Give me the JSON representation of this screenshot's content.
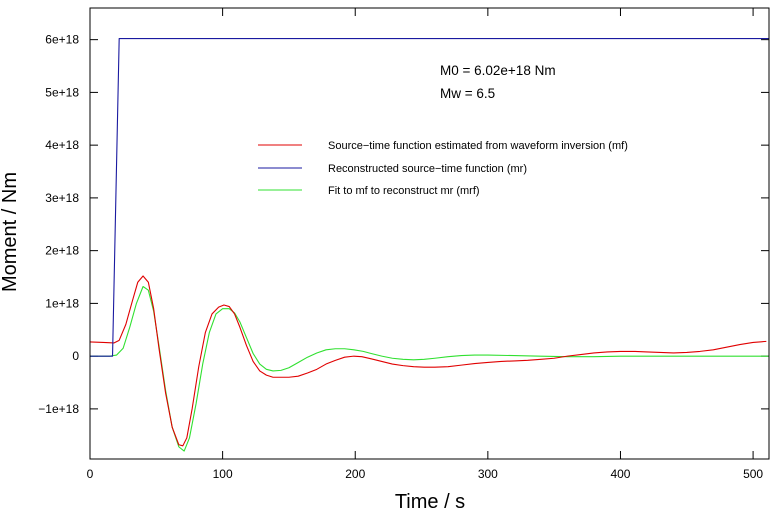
{
  "chart_data": {
    "type": "line",
    "xlabel": "Time / s",
    "ylabel": "Moment / Nm",
    "xlim": [
      0,
      512
    ],
    "ylim": [
      -1.95e+18,
      6.6e+18
    ],
    "x_ticks": [
      0,
      100,
      200,
      300,
      400,
      500
    ],
    "y_ticks": [
      -1e+18,
      0,
      1e+18,
      2e+18,
      3e+18,
      4e+18,
      5e+18,
      6e+18
    ],
    "x_tick_labels": [
      "0",
      "100",
      "200",
      "300",
      "400",
      "500"
    ],
    "y_tick_labels": [
      "−1e+18",
      "0",
      "1e+18",
      "2e+18",
      "3e+18",
      "4e+18",
      "5e+18",
      "6e+18"
    ],
    "grid": false,
    "legend_placement": "upper-right",
    "annotations": [
      {
        "text": "M0 = 6.02e+18 Nm"
      },
      {
        "text": "Mw = 6.5"
      }
    ],
    "series": [
      {
        "name": "Source−time function estimated from waveform inversion (mf)",
        "color": "#e00000",
        "x": [
          0,
          10,
          18,
          22,
          27,
          32,
          36,
          40,
          44,
          48,
          52,
          57,
          62,
          67,
          70,
          73,
          77,
          82,
          87,
          92,
          97,
          101,
          105,
          109,
          113,
          118,
          123,
          128,
          133,
          138,
          144,
          150,
          157,
          164,
          171,
          178,
          185,
          192,
          199,
          205,
          212,
          220,
          228,
          236,
          244,
          252,
          260,
          270,
          280,
          290,
          300,
          310,
          320,
          330,
          340,
          350,
          360,
          370,
          380,
          390,
          400,
          410,
          420,
          430,
          440,
          450,
          460,
          470,
          480,
          490,
          500,
          510
        ],
        "values": [
          2.7e+17,
          2.6e+17,
          2.5e+17,
          3e+17,
          6e+17,
          1.05e+18,
          1.4e+18,
          1.52e+18,
          1.4e+18,
          9e+17,
          1.5e+17,
          -7e+17,
          -1.35e+18,
          -1.68e+18,
          -1.7e+18,
          -1.55e+18,
          -1e+18,
          -2e+17,
          4.5e+17,
          8e+17,
          9.3e+17,
          9.7e+17,
          9.4e+17,
          8e+17,
          5.5e+17,
          2e+17,
          -1e+17,
          -2.8e+17,
          -3.6e+17,
          -4e+17,
          -4e+17,
          -4e+17,
          -3.8e+17,
          -3.2e+17,
          -2.5e+17,
          -1.5e+17,
          -8e+16,
          -2e+16,
          0.0,
          -1e+16,
          -5e+16,
          -1e+17,
          -1.5e+17,
          -1.8e+17,
          -2e+17,
          -2.1e+17,
          -2.1e+17,
          -2e+17,
          -1.7e+17,
          -1.4e+17,
          -1.2e+17,
          -1e+17,
          -9e+16,
          -8e+16,
          -6e+16,
          -4e+16,
          0.0,
          3e+16,
          6e+16,
          8e+16,
          9e+16,
          9e+16,
          8e+16,
          7e+16,
          6e+16,
          7e+16,
          9e+16,
          1.2e+17,
          1.7e+17,
          2.2e+17,
          2.6e+17,
          2.8e+17
        ]
      },
      {
        "name": "Reconstructed source−time function (mr)",
        "color": "#1a1aa0",
        "x": [
          0,
          17,
          22,
          512
        ],
        "values": [
          0,
          0,
          6.02e+18,
          6.02e+18
        ]
      },
      {
        "name": "Fit to mf to reconstruct mr (mrf)",
        "color": "#30e030",
        "x": [
          0,
          15,
          20,
          25,
          30,
          35,
          40,
          44,
          48,
          52,
          57,
          62,
          67,
          71,
          75,
          80,
          85,
          90,
          95,
          100,
          105,
          109,
          113,
          118,
          123,
          128,
          133,
          138,
          144,
          150,
          157,
          164,
          171,
          178,
          185,
          192,
          199,
          206,
          212,
          220,
          228,
          236,
          244,
          252,
          260,
          270,
          280,
          290,
          300,
          320,
          340,
          360,
          380,
          400,
          420,
          440,
          460,
          480,
          500,
          512
        ],
        "values": [
          0.0,
          0.0,
          2e+16,
          1.5e+17,
          5.5e+17,
          1e+18,
          1.32e+18,
          1.25e+18,
          8.5e+17,
          2e+17,
          -6.5e+17,
          -1.35e+18,
          -1.72e+18,
          -1.8e+18,
          -1.55e+18,
          -9e+17,
          -1.5e+17,
          4.5e+17,
          8e+17,
          9e+17,
          9e+17,
          8.2e+17,
          6.5e+17,
          3.5e+17,
          5e+16,
          -1.5e+17,
          -2.5e+17,
          -2.8e+17,
          -2.7e+17,
          -2.2e+17,
          -1.2e+17,
          -2e+16,
          6e+16,
          1.2e+17,
          1.4e+17,
          1.4e+17,
          1.2e+17,
          9e+16,
          5e+16,
          0.0,
          -4e+16,
          -6e+16,
          -7e+16,
          -6e+16,
          -4e+16,
          -1e+16,
          1e+16,
          2e+16,
          2e+16,
          1e+16,
          0.0,
          -1e+16,
          -1e+16,
          0.0,
          0.0,
          0.0,
          0.0,
          0.0,
          0.0,
          0.0
        ]
      }
    ]
  }
}
